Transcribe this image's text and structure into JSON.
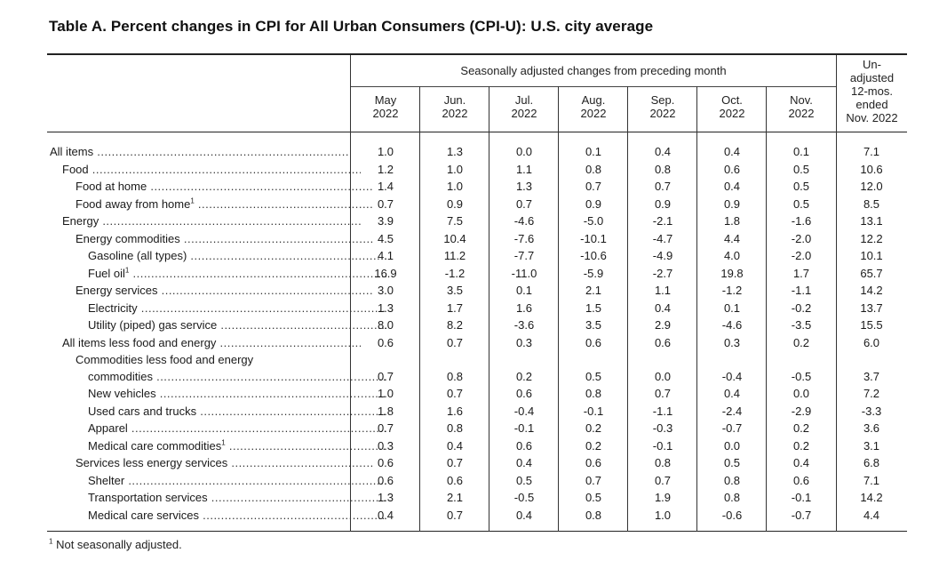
{
  "title": "Table A. Percent changes in CPI for All Urban Consumers (CPI-U): U.S. city average",
  "header": {
    "span_label": "Seasonally adjusted changes from preceding month",
    "months": [
      {
        "line1": "May",
        "line2": "2022"
      },
      {
        "line1": "Jun.",
        "line2": "2022"
      },
      {
        "line1": "Jul.",
        "line2": "2022"
      },
      {
        "line1": "Aug.",
        "line2": "2022"
      },
      {
        "line1": "Sep.",
        "line2": "2022"
      },
      {
        "line1": "Oct.",
        "line2": "2022"
      },
      {
        "line1": "Nov.",
        "line2": "2022"
      }
    ],
    "unadjusted": [
      "Un-",
      "adjusted",
      "12-mos.",
      "ended",
      "Nov. 2022"
    ]
  },
  "rows": [
    {
      "label": "All items",
      "indent": 0,
      "fn": "",
      "values": [
        "1.0",
        "1.3",
        "0.0",
        "0.1",
        "0.4",
        "0.4",
        "0.1",
        "7.1"
      ]
    },
    {
      "label": "Food",
      "indent": 1,
      "fn": "",
      "values": [
        "1.2",
        "1.0",
        "1.1",
        "0.8",
        "0.8",
        "0.6",
        "0.5",
        "10.6"
      ]
    },
    {
      "label": "Food at home",
      "indent": 2,
      "fn": "",
      "values": [
        "1.4",
        "1.0",
        "1.3",
        "0.7",
        "0.7",
        "0.4",
        "0.5",
        "12.0"
      ]
    },
    {
      "label": "Food away from home",
      "indent": 2,
      "fn": "1",
      "values": [
        "0.7",
        "0.9",
        "0.7",
        "0.9",
        "0.9",
        "0.9",
        "0.5",
        "8.5"
      ]
    },
    {
      "label": "Energy",
      "indent": 1,
      "fn": "",
      "values": [
        "3.9",
        "7.5",
        "-4.6",
        "-5.0",
        "-2.1",
        "1.8",
        "-1.6",
        "13.1"
      ]
    },
    {
      "label": "Energy commodities",
      "indent": 2,
      "fn": "",
      "values": [
        "4.5",
        "10.4",
        "-7.6",
        "-10.1",
        "-4.7",
        "4.4",
        "-2.0",
        "12.2"
      ]
    },
    {
      "label": "Gasoline (all types)",
      "indent": 3,
      "fn": "",
      "values": [
        "4.1",
        "11.2",
        "-7.7",
        "-10.6",
        "-4.9",
        "4.0",
        "-2.0",
        "10.1"
      ]
    },
    {
      "label": "Fuel oil",
      "indent": 3,
      "fn": "1",
      "values": [
        "16.9",
        "-1.2",
        "-11.0",
        "-5.9",
        "-2.7",
        "19.8",
        "1.7",
        "65.7"
      ]
    },
    {
      "label": "Energy services",
      "indent": 2,
      "fn": "",
      "values": [
        "3.0",
        "3.5",
        "0.1",
        "2.1",
        "1.1",
        "-1.2",
        "-1.1",
        "14.2"
      ]
    },
    {
      "label": "Electricity",
      "indent": 3,
      "fn": "",
      "values": [
        "1.3",
        "1.7",
        "1.6",
        "1.5",
        "0.4",
        "0.1",
        "-0.2",
        "13.7"
      ]
    },
    {
      "label": "Utility (piped) gas service",
      "indent": 3,
      "fn": "",
      "values": [
        "8.0",
        "8.2",
        "-3.6",
        "3.5",
        "2.9",
        "-4.6",
        "-3.5",
        "15.5"
      ]
    },
    {
      "label": "All items less food and energy",
      "indent": 1,
      "fn": "",
      "values": [
        "0.6",
        "0.7",
        "0.3",
        "0.6",
        "0.6",
        "0.3",
        "0.2",
        "6.0"
      ]
    },
    {
      "label": "Commodities less food and energy",
      "label2": "commodities",
      "indent": 2,
      "fn": "",
      "values": [
        "0.7",
        "0.8",
        "0.2",
        "0.5",
        "0.0",
        "-0.4",
        "-0.5",
        "3.7"
      ]
    },
    {
      "label": "New vehicles",
      "indent": 3,
      "fn": "",
      "values": [
        "1.0",
        "0.7",
        "0.6",
        "0.8",
        "0.7",
        "0.4",
        "0.0",
        "7.2"
      ]
    },
    {
      "label": "Used cars and trucks",
      "indent": 3,
      "fn": "",
      "values": [
        "1.8",
        "1.6",
        "-0.4",
        "-0.1",
        "-1.1",
        "-2.4",
        "-2.9",
        "-3.3"
      ]
    },
    {
      "label": "Apparel",
      "indent": 3,
      "fn": "",
      "values": [
        "0.7",
        "0.8",
        "-0.1",
        "0.2",
        "-0.3",
        "-0.7",
        "0.2",
        "3.6"
      ]
    },
    {
      "label": "Medical care commodities",
      "indent": 3,
      "fn": "1",
      "values": [
        "0.3",
        "0.4",
        "0.6",
        "0.2",
        "-0.1",
        "0.0",
        "0.2",
        "3.1"
      ]
    },
    {
      "label": "Services less energy services",
      "indent": 2,
      "fn": "",
      "values": [
        "0.6",
        "0.7",
        "0.4",
        "0.6",
        "0.8",
        "0.5",
        "0.4",
        "6.8"
      ]
    },
    {
      "label": "Shelter",
      "indent": 3,
      "fn": "",
      "values": [
        "0.6",
        "0.6",
        "0.5",
        "0.7",
        "0.7",
        "0.8",
        "0.6",
        "7.1"
      ]
    },
    {
      "label": "Transportation services",
      "indent": 3,
      "fn": "",
      "values": [
        "1.3",
        "2.1",
        "-0.5",
        "0.5",
        "1.9",
        "0.8",
        "-0.1",
        "14.2"
      ]
    },
    {
      "label": "Medical care services",
      "indent": 3,
      "fn": "",
      "values": [
        "0.4",
        "0.7",
        "0.4",
        "0.8",
        "1.0",
        "-0.6",
        "-0.7",
        "4.4"
      ]
    }
  ],
  "footnote": {
    "mark": "1",
    "text": "Not seasonally adjusted."
  }
}
